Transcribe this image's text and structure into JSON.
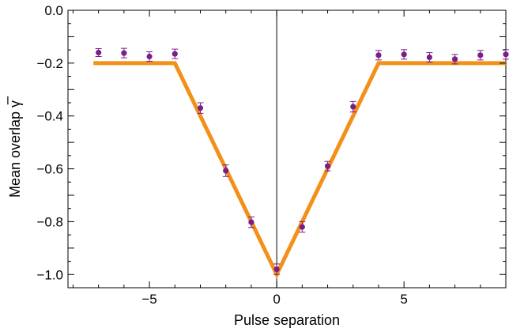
{
  "chart_data": {
    "type": "scatter",
    "xlabel": "Pulse separation",
    "ylabel": "Mean overlap γ̅",
    "xlim": [
      -8.2,
      9
    ],
    "ylim": [
      -1.05,
      0.0
    ],
    "xticks": [
      -5,
      0,
      5
    ],
    "xtick_labels": [
      "−5",
      "0",
      "5"
    ],
    "yticks": [
      0.0,
      -0.2,
      -0.4,
      -0.6,
      -0.8,
      -1.0
    ],
    "ytick_labels": [
      "0.0",
      "−0.2",
      "−0.4",
      "−0.6",
      "−0.8",
      "−1.0"
    ],
    "grid": false,
    "series": [
      {
        "kind": "points_with_errorbars",
        "color": "#7a1f8a",
        "x": [
          -7,
          -6,
          -5,
          -4,
          -3,
          -2,
          -1,
          0,
          1,
          2,
          3,
          4,
          5,
          6,
          7,
          8,
          9
        ],
        "y": [
          -0.16,
          -0.162,
          -0.175,
          -0.165,
          -0.37,
          -0.607,
          -0.802,
          -0.98,
          -0.82,
          -0.59,
          -0.365,
          -0.17,
          -0.167,
          -0.178,
          -0.185,
          -0.17,
          -0.167
        ],
        "err": [
          0.015,
          0.018,
          0.018,
          0.018,
          0.02,
          0.022,
          0.02,
          0.02,
          0.02,
          0.018,
          0.02,
          0.018,
          0.018,
          0.018,
          0.018,
          0.018,
          0.018
        ]
      },
      {
        "kind": "line",
        "color": "#f39019",
        "x": [
          -7.2,
          -4,
          0,
          4,
          9
        ],
        "y": [
          -0.2,
          -0.2,
          -1.0,
          -0.2,
          -0.2
        ]
      }
    ]
  }
}
